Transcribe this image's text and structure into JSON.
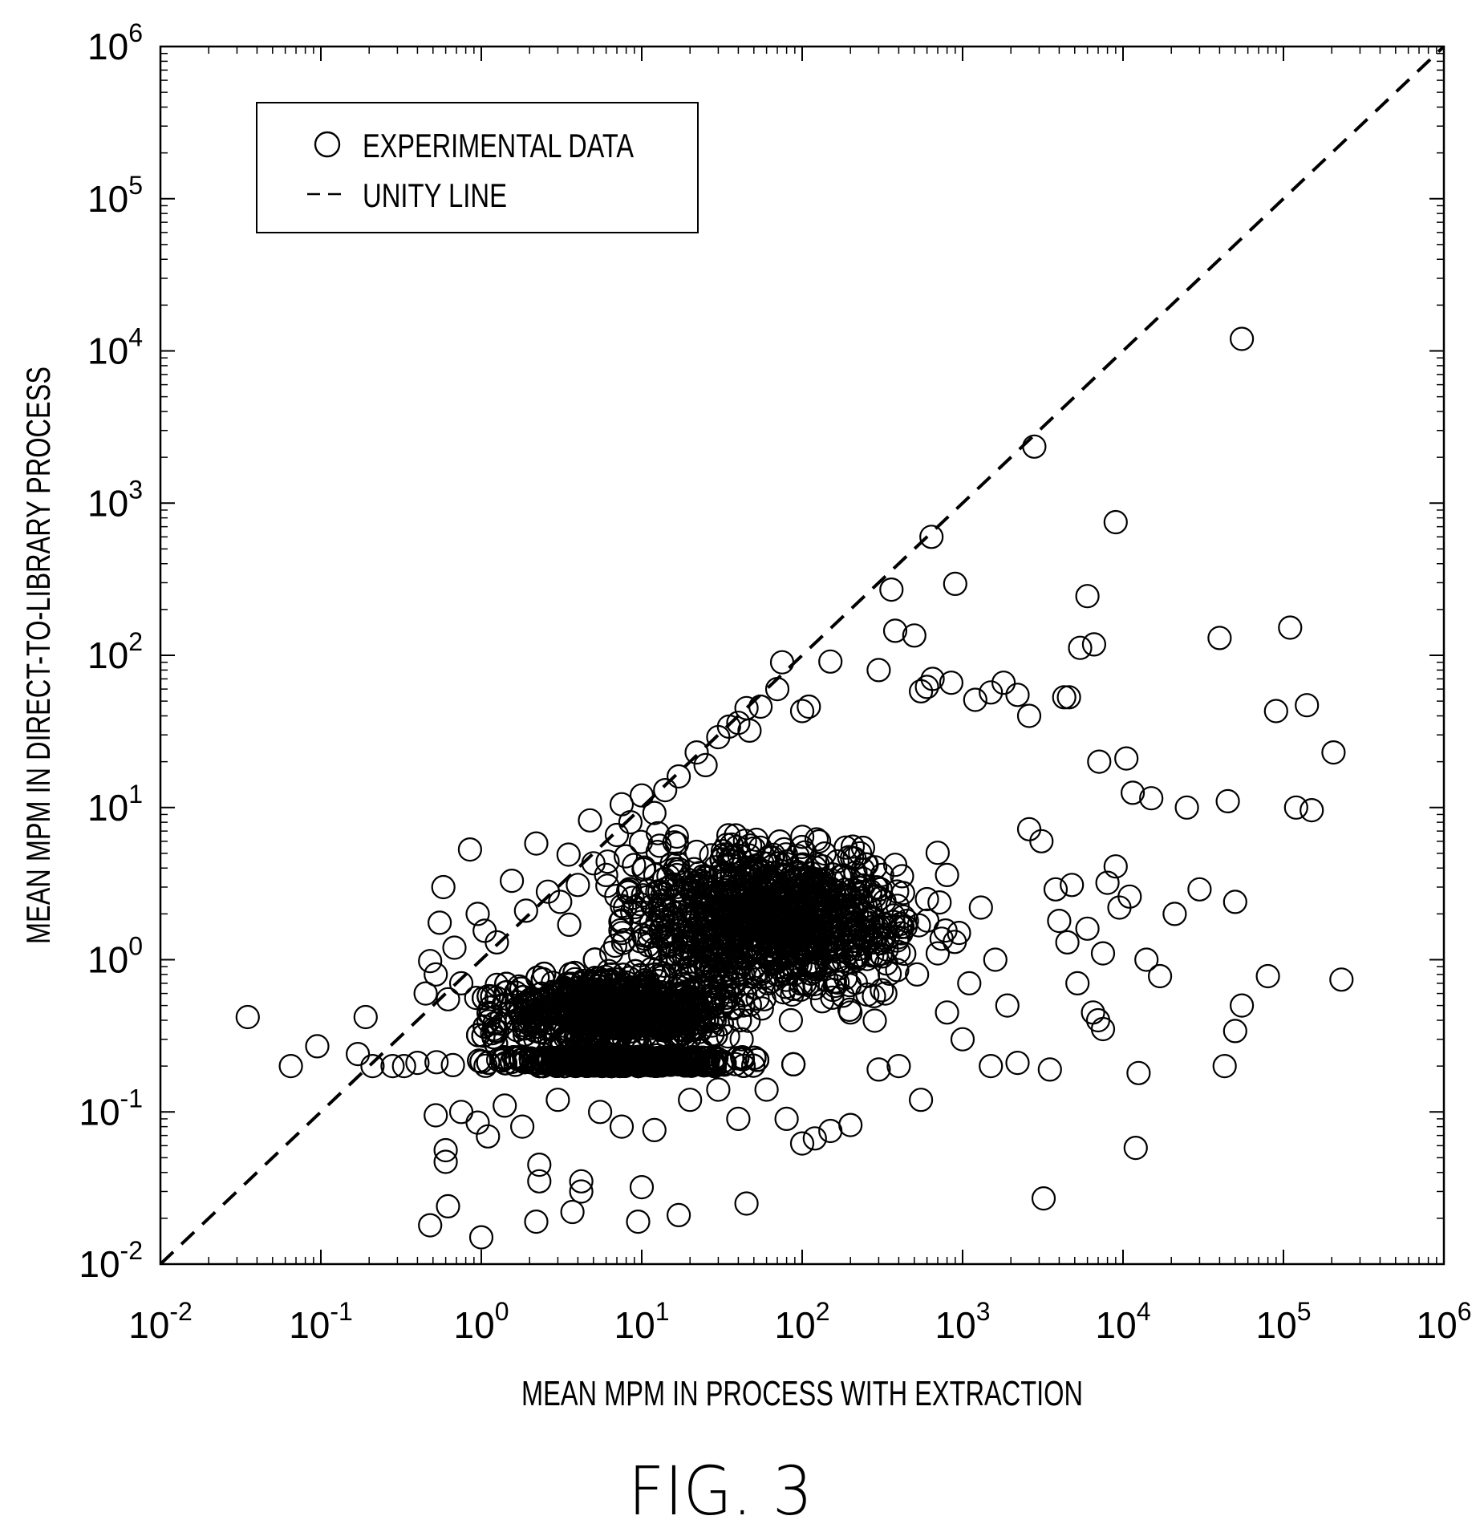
{
  "figure": {
    "caption": "FIG. 3"
  },
  "chart_data": {
    "type": "scatter",
    "xlabel": "MEAN MPM IN PROCESS WITH EXTRACTION",
    "ylabel": "MEAN MPM IN DIRECT-TO-LIBRARY PROCESS",
    "xscale": "log",
    "yscale": "log",
    "xlim": [
      0.01,
      1000000
    ],
    "ylim": [
      0.01,
      1000000
    ],
    "x_ticks": [
      {
        "value": 0.01,
        "base": "10",
        "exp": "-2"
      },
      {
        "value": 0.1,
        "base": "10",
        "exp": "-1"
      },
      {
        "value": 1,
        "base": "10",
        "exp": "0"
      },
      {
        "value": 10,
        "base": "10",
        "exp": "1"
      },
      {
        "value": 100,
        "base": "10",
        "exp": "2"
      },
      {
        "value": 1000,
        "base": "10",
        "exp": "3"
      },
      {
        "value": 10000,
        "base": "10",
        "exp": "4"
      },
      {
        "value": 100000,
        "base": "10",
        "exp": "5"
      },
      {
        "value": 1000000,
        "base": "10",
        "exp": "6"
      }
    ],
    "y_ticks": [
      {
        "value": 0.01,
        "base": "10",
        "exp": "-2"
      },
      {
        "value": 0.1,
        "base": "10",
        "exp": "-1"
      },
      {
        "value": 1,
        "base": "10",
        "exp": "0"
      },
      {
        "value": 10,
        "base": "10",
        "exp": "1"
      },
      {
        "value": 100,
        "base": "10",
        "exp": "2"
      },
      {
        "value": 1000,
        "base": "10",
        "exp": "3"
      },
      {
        "value": 10000,
        "base": "10",
        "exp": "4"
      },
      {
        "value": 100000,
        "base": "10",
        "exp": "5"
      },
      {
        "value": 1000000,
        "base": "10",
        "exp": "6"
      }
    ],
    "grid": false,
    "legend": {
      "position": "top-left",
      "entries": [
        {
          "label": "EXPERIMENTAL DATA",
          "marker": "open-circle"
        },
        {
          "label": "UNITY LINE",
          "marker": "dashed-line"
        }
      ]
    },
    "series": [
      {
        "name": "EXPERIMENTAL DATA",
        "marker": "open-circle",
        "color": "#000000",
        "points": [
          [
            0.035,
            0.42
          ],
          [
            0.065,
            0.2
          ],
          [
            0.095,
            0.27
          ],
          [
            0.19,
            0.42
          ],
          [
            0.17,
            0.24
          ],
          [
            0.21,
            0.2
          ],
          [
            0.28,
            0.2
          ],
          [
            0.33,
            0.2
          ],
          [
            0.4,
            0.21
          ],
          [
            0.45,
            0.6
          ],
          [
            0.48,
            0.98
          ],
          [
            0.52,
            0.8
          ],
          [
            0.55,
            1.75
          ],
          [
            0.58,
            3.0
          ],
          [
            0.62,
            0.55
          ],
          [
            0.68,
            1.2
          ],
          [
            0.75,
            0.7
          ],
          [
            0.85,
            5.3
          ],
          [
            0.95,
            2.0
          ],
          [
            1.05,
            1.55
          ],
          [
            1.25,
            1.3
          ],
          [
            1.55,
            3.3
          ],
          [
            1.9,
            2.1
          ],
          [
            2.2,
            5.8
          ],
          [
            2.6,
            2.8
          ],
          [
            3.1,
            2.4
          ],
          [
            3.5,
            4.9
          ],
          [
            4.0,
            3.1
          ],
          [
            5.0,
            4.3
          ],
          [
            6.0,
            3.6
          ],
          [
            7.0,
            6.6
          ],
          [
            7.5,
            10.5
          ],
          [
            8.5,
            8.0
          ],
          [
            10,
            12
          ],
          [
            12,
            9.2
          ],
          [
            14,
            13
          ],
          [
            17,
            16
          ],
          [
            16,
            5.9
          ],
          [
            22,
            23
          ],
          [
            25,
            19
          ],
          [
            30,
            29
          ],
          [
            35,
            34
          ],
          [
            40,
            36
          ],
          [
            45,
            45
          ],
          [
            47,
            32
          ],
          [
            55,
            46
          ],
          [
            70,
            60
          ],
          [
            75,
            90
          ],
          [
            100,
            43
          ],
          [
            110,
            46
          ],
          [
            150,
            91
          ],
          [
            300,
            80
          ],
          [
            360,
            270
          ],
          [
            380,
            145
          ],
          [
            500,
            135
          ],
          [
            640,
            600
          ],
          [
            900,
            295
          ],
          [
            850,
            66
          ],
          [
            550,
            58
          ],
          [
            600,
            62
          ],
          [
            650,
            70
          ],
          [
            1200,
            51
          ],
          [
            1500,
            57
          ],
          [
            1800,
            66
          ],
          [
            2200,
            55
          ],
          [
            2600,
            40
          ],
          [
            2800,
            2350
          ],
          [
            4300,
            53
          ],
          [
            4600,
            53
          ],
          [
            5400,
            112
          ],
          [
            6000,
            245
          ],
          [
            6600,
            118
          ],
          [
            7100,
            20
          ],
          [
            9000,
            750
          ],
          [
            10500,
            21
          ],
          [
            11500,
            12.5
          ],
          [
            11000,
            2.6
          ],
          [
            15000,
            11.5
          ],
          [
            25000,
            10
          ],
          [
            40000,
            130
          ],
          [
            45000,
            11
          ],
          [
            55000,
            12000
          ],
          [
            90000,
            43
          ],
          [
            110000,
            152
          ],
          [
            120000,
            10
          ],
          [
            150000,
            9.6
          ],
          [
            140000,
            47
          ],
          [
            205000,
            23
          ],
          [
            230000,
            0.74
          ],
          [
            80000,
            0.78
          ],
          [
            50000,
            2.4
          ],
          [
            30000,
            2.9
          ],
          [
            21000,
            2.0
          ],
          [
            17000,
            0.78
          ],
          [
            14000,
            1.0
          ],
          [
            12500,
            0.18
          ],
          [
            12000,
            0.058
          ],
          [
            43000,
            0.2
          ],
          [
            50000,
            0.34
          ],
          [
            55000,
            0.5
          ],
          [
            3200,
            0.027
          ],
          [
            3500,
            0.19
          ],
          [
            2200,
            0.21
          ],
          [
            1500,
            0.2
          ],
          [
            1000,
            0.3
          ],
          [
            800,
            0.45
          ],
          [
            550,
            0.12
          ],
          [
            400,
            0.2
          ],
          [
            300,
            0.19
          ],
          [
            200,
            0.082
          ],
          [
            150,
            0.075
          ],
          [
            120,
            0.067
          ],
          [
            100,
            0.062
          ],
          [
            80,
            0.09
          ],
          [
            60,
            0.14
          ],
          [
            45,
            0.025
          ],
          [
            40,
            0.09
          ],
          [
            30,
            0.14
          ],
          [
            20,
            0.12
          ],
          [
            17,
            0.021
          ],
          [
            12,
            0.076
          ],
          [
            10,
            0.032
          ],
          [
            9.5,
            0.019
          ],
          [
            7.5,
            0.08
          ],
          [
            5.5,
            0.1
          ],
          [
            4.2,
            0.035
          ],
          [
            4.2,
            0.03
          ],
          [
            3.7,
            0.022
          ],
          [
            3.0,
            0.12
          ],
          [
            2.3,
            0.045
          ],
          [
            2.3,
            0.035
          ],
          [
            2.2,
            0.019
          ],
          [
            1.8,
            0.08
          ],
          [
            1.4,
            0.11
          ],
          [
            1.1,
            0.069
          ],
          [
            1.0,
            0.015
          ],
          [
            0.95,
            0.085
          ],
          [
            0.75,
            0.1
          ],
          [
            0.62,
            0.024
          ],
          [
            0.6,
            0.056
          ],
          [
            0.6,
            0.047
          ],
          [
            0.52,
            0.095
          ],
          [
            0.48,
            0.018
          ],
          [
            1.2,
            0.35
          ],
          [
            1.5,
            0.45
          ],
          [
            2.0,
            0.3
          ],
          [
            2.5,
            0.55
          ],
          [
            3.0,
            0.4
          ],
          [
            3.5,
            0.25
          ],
          [
            4.5,
            0.6
          ],
          [
            5.5,
            0.35
          ],
          [
            6.5,
            0.8
          ],
          [
            8.0,
            0.5
          ],
          [
            9.0,
            0.28
          ],
          [
            11,
            0.7
          ],
          [
            13,
            0.45
          ],
          [
            15,
            1.1
          ],
          [
            18,
            0.6
          ],
          [
            21,
            0.35
          ],
          [
            25,
            0.9
          ],
          [
            28,
            0.5
          ],
          [
            33,
            1.5
          ],
          [
            38,
            0.7
          ],
          [
            42,
            0.3
          ],
          [
            50,
            1.2
          ],
          [
            58,
            0.55
          ],
          [
            65,
            2.1
          ],
          [
            75,
            0.85
          ],
          [
            85,
            0.4
          ],
          [
            95,
            1.7
          ],
          [
            120,
            0.65
          ],
          [
            140,
            2.8
          ],
          [
            170,
            1.0
          ],
          [
            200,
            0.45
          ],
          [
            240,
            3.4
          ],
          [
            280,
            1.3
          ],
          [
            330,
            0.6
          ],
          [
            380,
            4.2
          ],
          [
            450,
            1.8
          ],
          [
            520,
            0.8
          ],
          [
            600,
            2.5
          ],
          [
            700,
            1.1
          ],
          [
            800,
            3.6
          ],
          [
            950,
            1.5
          ],
          [
            1100,
            0.7
          ],
          [
            1300,
            2.2
          ],
          [
            1600,
            1.0
          ],
          [
            1900,
            0.5
          ],
          [
            4000,
            1.8
          ],
          [
            4500,
            1.3
          ],
          [
            5200,
            0.7
          ],
          [
            6000,
            1.6
          ],
          [
            7000,
            0.4
          ],
          [
            7500,
            1.1
          ],
          [
            8000,
            3.2
          ],
          [
            9000,
            4.1
          ],
          [
            9500,
            2.2
          ],
          [
            7500,
            0.35
          ],
          [
            6500,
            0.45
          ],
          [
            4800,
            3.1
          ],
          [
            3800,
            2.9
          ],
          [
            3100,
            6.0
          ],
          [
            2600,
            7.2
          ]
        ]
      },
      {
        "name": "UNITY LINE",
        "style": "dashed",
        "color": "#000000",
        "points": [
          [
            0.01,
            0.01
          ],
          [
            1000000,
            1000000
          ]
        ]
      }
    ],
    "dense_clusters": [
      {
        "x_range": [
          0.4,
          120
        ],
        "y_range": [
          0.18,
          1.2
        ],
        "approx_count": 2400
      },
      {
        "x_range": [
          2,
          2000
        ],
        "y_range": [
          0.3,
          12
        ],
        "approx_count": 1000
      }
    ]
  }
}
